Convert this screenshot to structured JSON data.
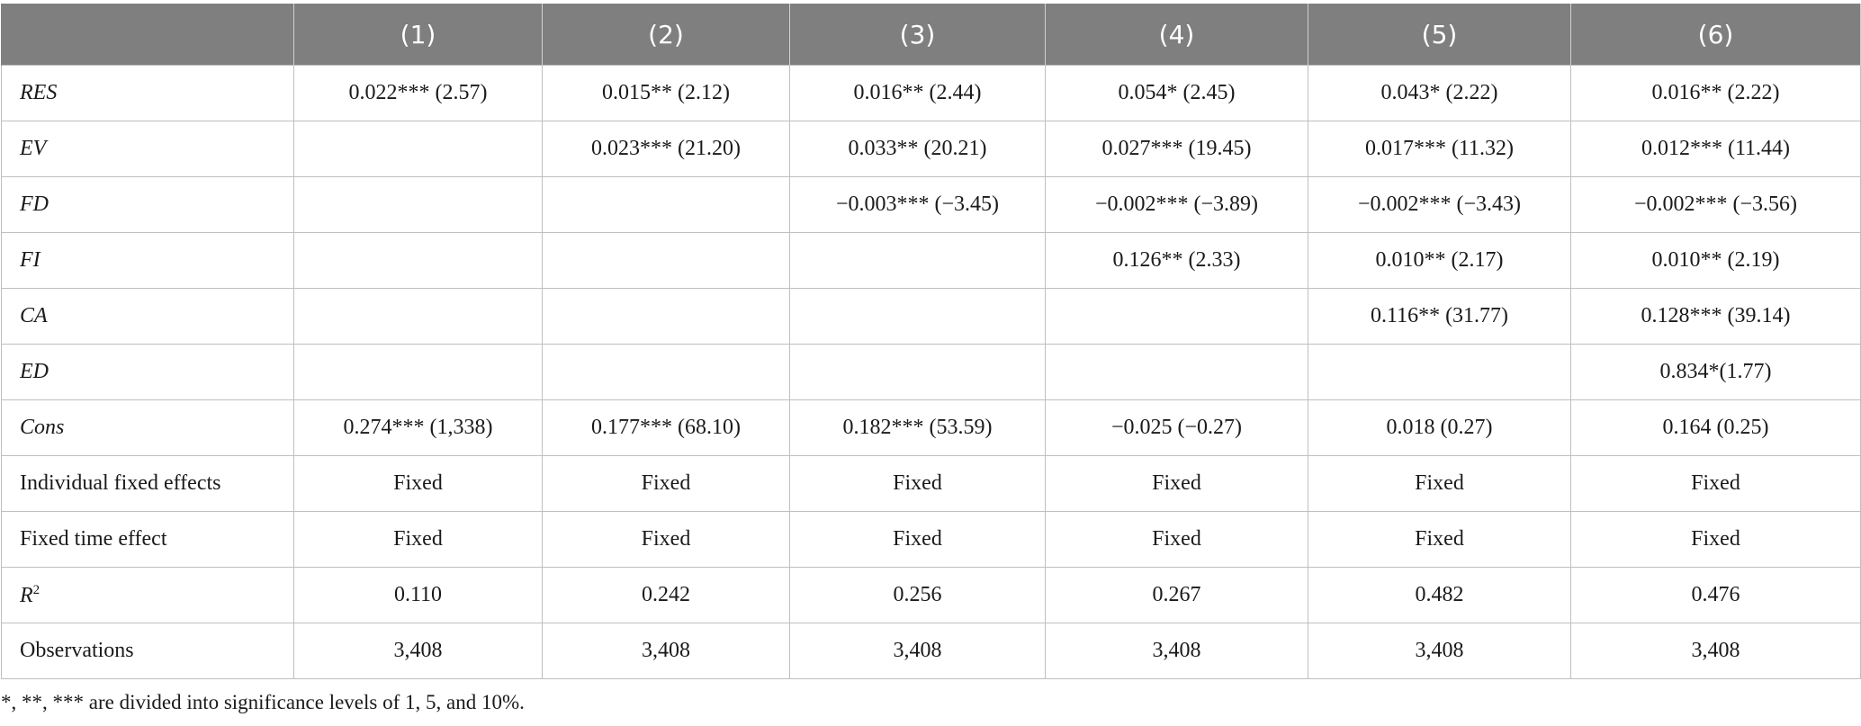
{
  "table": {
    "header": [
      "",
      "(1)",
      "(2)",
      "(3)",
      "(4)",
      "(5)",
      "(6)"
    ],
    "rows": [
      {
        "label": "RES",
        "italic": true,
        "cells": [
          "0.022*** (2.57)",
          "0.015** (2.12)",
          "0.016** (2.44)",
          "0.054* (2.45)",
          "0.043* (2.22)",
          "0.016** (2.22)"
        ]
      },
      {
        "label": "EV",
        "italic": true,
        "cells": [
          "",
          "0.023*** (21.20)",
          "0.033** (20.21)",
          "0.027*** (19.45)",
          "0.017*** (11.32)",
          "0.012*** (11.44)"
        ]
      },
      {
        "label": "FD",
        "italic": true,
        "cells": [
          "",
          "",
          "−0.003*** (−3.45)",
          "−0.002*** (−3.89)",
          "−0.002*** (−3.43)",
          "−0.002*** (−3.56)"
        ]
      },
      {
        "label": "FI",
        "italic": true,
        "cells": [
          "",
          "",
          "",
          "0.126** (2.33)",
          "0.010** (2.17)",
          "0.010** (2.19)"
        ]
      },
      {
        "label": "CA",
        "italic": true,
        "cells": [
          "",
          "",
          "",
          "",
          "0.116** (31.77)",
          "0.128*** (39.14)"
        ]
      },
      {
        "label": "ED",
        "italic": true,
        "cells": [
          "",
          "",
          "",
          "",
          "",
          "0.834*(1.77)"
        ]
      },
      {
        "label": "Cons",
        "italic": true,
        "cells": [
          "0.274*** (1,338)",
          "0.177*** (68.10)",
          "0.182*** (53.59)",
          "−0.025 (−0.27)",
          "0.018 (0.27)",
          "0.164 (0.25)"
        ]
      },
      {
        "label": "Individual fixed effects",
        "italic": false,
        "cells": [
          "Fixed",
          "Fixed",
          "Fixed",
          "Fixed",
          "Fixed",
          "Fixed"
        ]
      },
      {
        "label": "Fixed time effect",
        "italic": false,
        "cells": [
          "Fixed",
          "Fixed",
          "Fixed",
          "Fixed",
          "Fixed",
          "Fixed"
        ]
      },
      {
        "label": "R",
        "label_sup": "2",
        "italic": true,
        "cells": [
          "0.110",
          "0.242",
          "0.256",
          "0.267",
          "0.482",
          "0.476"
        ]
      },
      {
        "label": "Observations",
        "italic": false,
        "cells": [
          "3,408",
          "3,408",
          "3,408",
          "3,408",
          "3,408",
          "3,408"
        ]
      }
    ]
  },
  "footnote": "*, **, *** are divided into significance levels of 1, 5, and 10%."
}
